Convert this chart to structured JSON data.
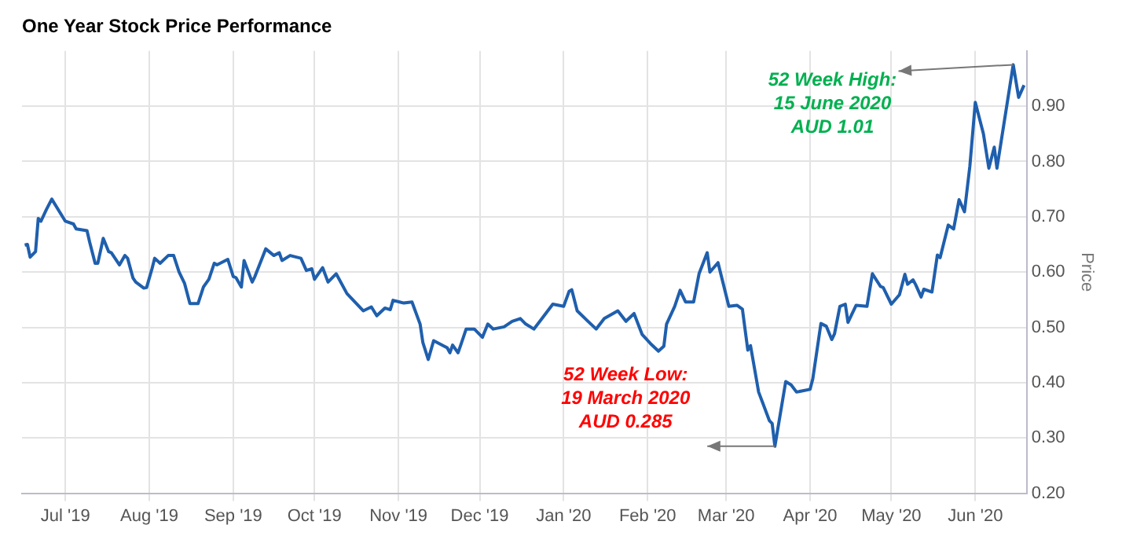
{
  "chart_data": {
    "type": "line",
    "title": "One Year Stock Price Performance",
    "ylabel": "Price",
    "x": [
      "2019-06-16",
      "2019-06-17",
      "2019-06-18",
      "2019-06-20",
      "2019-06-21",
      "2019-06-22",
      "2019-06-24",
      "2019-06-26",
      "2019-07-01",
      "2019-07-04",
      "2019-07-05",
      "2019-07-09",
      "2019-07-10",
      "2019-07-12",
      "2019-07-13",
      "2019-07-15",
      "2019-07-17",
      "2019-07-18",
      "2019-07-21",
      "2019-07-23",
      "2019-07-24",
      "2019-07-26",
      "2019-07-27",
      "2019-07-30",
      "2019-07-31",
      "2019-08-02",
      "2019-08-03",
      "2019-08-05",
      "2019-08-08",
      "2019-08-10",
      "2019-08-12",
      "2019-08-14",
      "2019-08-16",
      "2019-08-19",
      "2019-08-21",
      "2019-08-23",
      "2019-08-25",
      "2019-08-26",
      "2019-08-30",
      "2019-09-01",
      "2019-09-02",
      "2019-09-04",
      "2019-09-05",
      "2019-09-08",
      "2019-09-09",
      "2019-09-13",
      "2019-09-16",
      "2019-09-18",
      "2019-09-19",
      "2019-09-22",
      "2019-09-26",
      "2019-09-28",
      "2019-09-30",
      "2019-10-01",
      "2019-10-04",
      "2019-10-06",
      "2019-10-09",
      "2019-10-13",
      "2019-10-19",
      "2019-10-22",
      "2019-10-24",
      "2019-10-27",
      "2019-10-29",
      "2019-10-30",
      "2019-11-03",
      "2019-11-06",
      "2019-11-09",
      "2019-11-10",
      "2019-11-12",
      "2019-11-14",
      "2019-11-19",
      "2019-11-20",
      "2019-11-21",
      "2019-11-23",
      "2019-11-24",
      "2019-11-26",
      "2019-11-29",
      "2019-12-02",
      "2019-12-04",
      "2019-12-06",
      "2019-12-10",
      "2019-12-13",
      "2019-12-16",
      "2019-12-18",
      "2019-12-21",
      "2019-12-24",
      "2019-12-28",
      "2020-01-01",
      "2020-01-03",
      "2020-01-04",
      "2020-01-06",
      "2020-01-10",
      "2020-01-13",
      "2020-01-16",
      "2020-01-21",
      "2020-01-24",
      "2020-01-27",
      "2020-01-30",
      "2020-02-02",
      "2020-02-05",
      "2020-02-07",
      "2020-02-08",
      "2020-02-11",
      "2020-02-13",
      "2020-02-15",
      "2020-02-18",
      "2020-02-20",
      "2020-02-23",
      "2020-02-24",
      "2020-02-27",
      "2020-03-02",
      "2020-03-05",
      "2020-03-07",
      "2020-03-09",
      "2020-03-10",
      "2020-03-13",
      "2020-03-17",
      "2020-03-18",
      "2020-03-19",
      "2020-03-23",
      "2020-03-25",
      "2020-03-27",
      "2020-04-01",
      "2020-04-02",
      "2020-04-05",
      "2020-04-07",
      "2020-04-09",
      "2020-04-10",
      "2020-04-12",
      "2020-04-14",
      "2020-04-15",
      "2020-04-18",
      "2020-04-22",
      "2020-04-24",
      "2020-04-27",
      "2020-04-28",
      "2020-05-01",
      "2020-05-04",
      "2020-05-06",
      "2020-05-07",
      "2020-05-09",
      "2020-05-10",
      "2020-05-12",
      "2020-05-13",
      "2020-05-16",
      "2020-05-18",
      "2020-05-19",
      "2020-05-22",
      "2020-05-24",
      "2020-05-26",
      "2020-05-28",
      "2020-05-30",
      "2020-06-01",
      "2020-06-04",
      "2020-06-06",
      "2020-06-08",
      "2020-06-09",
      "2020-06-15",
      "2020-06-17",
      "2020-06-19"
    ],
    "series": [
      {
        "color": "#1f5fad",
        "values": [
          0.649,
          0.65,
          0.627,
          0.637,
          0.697,
          0.692,
          0.713,
          0.732,
          0.692,
          0.687,
          0.678,
          0.675,
          0.654,
          0.616,
          0.616,
          0.661,
          0.637,
          0.635,
          0.613,
          0.63,
          0.625,
          0.589,
          0.582,
          0.571,
          0.572,
          0.606,
          0.625,
          0.616,
          0.63,
          0.63,
          0.6,
          0.58,
          0.543,
          0.543,
          0.573,
          0.587,
          0.616,
          0.613,
          0.623,
          0.592,
          0.59,
          0.573,
          0.621,
          0.582,
          0.592,
          0.642,
          0.63,
          0.635,
          0.621,
          0.63,
          0.625,
          0.603,
          0.606,
          0.587,
          0.608,
          0.582,
          0.597,
          0.561,
          0.53,
          0.537,
          0.521,
          0.535,
          0.532,
          0.549,
          0.544,
          0.546,
          0.506,
          0.473,
          0.442,
          0.476,
          0.463,
          0.454,
          0.468,
          0.454,
          0.468,
          0.497,
          0.497,
          0.482,
          0.506,
          0.497,
          0.501,
          0.511,
          0.516,
          0.506,
          0.497,
          0.516,
          0.542,
          0.538,
          0.565,
          0.568,
          0.53,
          0.511,
          0.497,
          0.516,
          0.53,
          0.511,
          0.525,
          0.487,
          0.471,
          0.457,
          0.466,
          0.506,
          0.538,
          0.567,
          0.546,
          0.546,
          0.597,
          0.635,
          0.6,
          0.617,
          0.538,
          0.54,
          0.533,
          0.459,
          0.467,
          0.383,
          0.331,
          0.326,
          0.285,
          0.402,
          0.396,
          0.383,
          0.388,
          0.407,
          0.507,
          0.502,
          0.478,
          0.488,
          0.538,
          0.542,
          0.509,
          0.54,
          0.538,
          0.597,
          0.574,
          0.572,
          0.542,
          0.559,
          0.596,
          0.578,
          0.586,
          0.577,
          0.555,
          0.569,
          0.564,
          0.631,
          0.626,
          0.685,
          0.678,
          0.731,
          0.709,
          0.792,
          0.907,
          0.85,
          0.788,
          0.826,
          0.788,
          0.975,
          0.916,
          0.938
        ]
      }
    ],
    "xlim": [
      "2019-06-15",
      "2020-06-20"
    ],
    "xticks": [
      {
        "value": "2019-07-01",
        "label": "Jul '19"
      },
      {
        "value": "2019-08-01",
        "label": "Aug '19"
      },
      {
        "value": "2019-09-01",
        "label": "Sep '19"
      },
      {
        "value": "2019-10-01",
        "label": "Oct '19"
      },
      {
        "value": "2019-11-01",
        "label": "Nov '19"
      },
      {
        "value": "2019-12-01",
        "label": "Dec '19"
      },
      {
        "value": "2020-01-01",
        "label": "Jan '20"
      },
      {
        "value": "2020-02-01",
        "label": "Feb '20"
      },
      {
        "value": "2020-03-01",
        "label": "Mar '20"
      },
      {
        "value": "2020-04-01",
        "label": "Apr '20"
      },
      {
        "value": "2020-05-01",
        "label": "May '20"
      },
      {
        "value": "2020-06-01",
        "label": "Jun '20"
      }
    ],
    "ylim": [
      0.2,
      1.0
    ],
    "yticks": [
      {
        "value": 0.2,
        "label": "0.20"
      },
      {
        "value": 0.3,
        "label": "0.30"
      },
      {
        "value": 0.4,
        "label": "0.40"
      },
      {
        "value": 0.5,
        "label": "0.50"
      },
      {
        "value": 0.6,
        "label": "0.60"
      },
      {
        "value": 0.7,
        "label": "0.70"
      },
      {
        "value": 0.8,
        "label": "0.80"
      },
      {
        "value": 0.9,
        "label": "0.90"
      }
    ],
    "grid": true,
    "marker": "none",
    "line_style": "solid",
    "annotations": [
      {
        "text": "52 Week High:\n15 June 2020\nAUD 1.01",
        "x": "2020-06-15",
        "y": 0.975
      },
      {
        "text": "52 Week Low:\n19 March 2020\nAUD 0.285",
        "x": "2020-03-19",
        "y": 0.285
      }
    ]
  }
}
